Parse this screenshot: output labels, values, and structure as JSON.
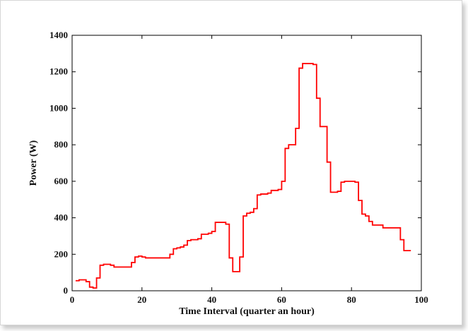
{
  "chart_data": {
    "type": "line",
    "title": "",
    "xlabel": "Time Interval (quarter an hour)",
    "ylabel": "Power (W)",
    "xlim": [
      0,
      100
    ],
    "ylim": [
      0,
      1400
    ],
    "xticks": [
      0,
      20,
      40,
      60,
      80,
      100
    ],
    "yticks": [
      0,
      200,
      400,
      600,
      800,
      1000,
      1200,
      1400
    ],
    "grid": false,
    "legend": "none",
    "series": [
      {
        "color": "#ff0000",
        "step": "post",
        "x": [
          1,
          2,
          3,
          4,
          5,
          6,
          7,
          8,
          9,
          10,
          11,
          12,
          13,
          14,
          15,
          16,
          17,
          18,
          19,
          20,
          21,
          22,
          23,
          24,
          25,
          26,
          27,
          28,
          29,
          30,
          31,
          32,
          33,
          34,
          35,
          36,
          37,
          38,
          39,
          40,
          41,
          42,
          43,
          44,
          45,
          46,
          47,
          48,
          49,
          50,
          51,
          52,
          53,
          54,
          55,
          56,
          57,
          58,
          59,
          60,
          61,
          62,
          63,
          64,
          65,
          66,
          67,
          68,
          69,
          70,
          71,
          72,
          73,
          74,
          75,
          76,
          77,
          78,
          79,
          80,
          81,
          82,
          83,
          84,
          85,
          86,
          87,
          88,
          89,
          90,
          91,
          92,
          93,
          94,
          95,
          96
        ],
        "y": [
          55,
          60,
          60,
          50,
          20,
          15,
          70,
          140,
          145,
          145,
          140,
          130,
          130,
          130,
          130,
          130,
          155,
          185,
          190,
          185,
          180,
          180,
          180,
          180,
          180,
          180,
          180,
          200,
          230,
          235,
          240,
          250,
          275,
          280,
          280,
          285,
          310,
          310,
          315,
          325,
          375,
          375,
          375,
          365,
          180,
          105,
          105,
          185,
          410,
          425,
          430,
          450,
          525,
          530,
          530,
          535,
          550,
          550,
          555,
          600,
          780,
          800,
          800,
          890,
          1220,
          1245,
          1245,
          1245,
          1240,
          1055,
          900,
          900,
          705,
          540,
          540,
          545,
          595,
          600,
          600,
          600,
          595,
          495,
          420,
          410,
          380,
          360,
          360,
          360,
          345,
          345,
          345,
          345,
          345,
          280,
          220,
          220
        ]
      }
    ]
  }
}
